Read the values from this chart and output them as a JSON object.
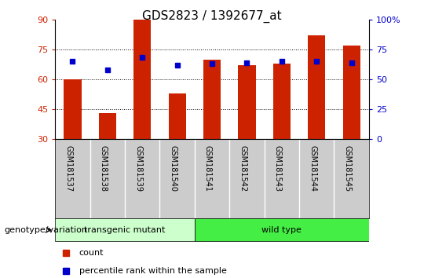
{
  "title": "GDS2823 / 1392677_at",
  "samples": [
    "GSM181537",
    "GSM181538",
    "GSM181539",
    "GSM181540",
    "GSM181541",
    "GSM181542",
    "GSM181543",
    "GSM181544",
    "GSM181545"
  ],
  "counts": [
    60,
    43,
    90,
    53,
    70,
    67,
    68,
    82,
    77
  ],
  "percentiles": [
    65,
    58,
    68,
    62,
    63,
    64,
    65,
    65,
    64
  ],
  "bar_color": "#CC2200",
  "dot_color": "#0000CC",
  "ylim_left": [
    30,
    90
  ],
  "ylim_right": [
    0,
    100
  ],
  "yticks_left": [
    30,
    45,
    60,
    75,
    90
  ],
  "yticks_right": [
    0,
    25,
    50,
    75,
    100
  ],
  "groups": [
    {
      "label": "transgenic mutant",
      "start": 0,
      "end": 3,
      "color": "#AAFFAA"
    },
    {
      "label": "wild type",
      "start": 4,
      "end": 8,
      "color": "#33EE33"
    }
  ],
  "group_label": "genotype/variation",
  "legend_labels": [
    "count",
    "percentile rank within the sample"
  ],
  "legend_colors": [
    "#CC2200",
    "#0000CC"
  ],
  "title_fontsize": 11,
  "tick_fontsize": 8,
  "label_fontsize": 8
}
